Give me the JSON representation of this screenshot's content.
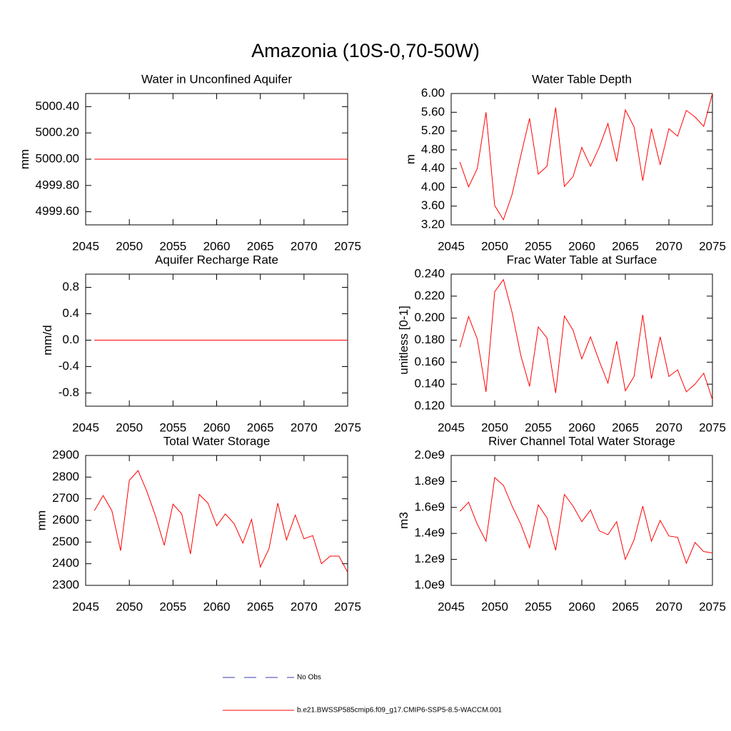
{
  "title": "Amazonia (10S-0,70-50W)",
  "chart_data": [
    {
      "type": "line",
      "title": "Water in Unconfined Aquifer",
      "ylabel": "mm",
      "x": [
        2046,
        2047,
        2048,
        2049,
        2050,
        2051,
        2052,
        2053,
        2054,
        2055,
        2056,
        2057,
        2058,
        2059,
        2060,
        2061,
        2062,
        2063,
        2064,
        2065,
        2066,
        2067,
        2068,
        2069,
        2070,
        2071,
        2072,
        2073,
        2074,
        2075
      ],
      "values": [
        5000,
        5000,
        5000,
        5000,
        5000,
        5000,
        5000,
        5000,
        5000,
        5000,
        5000,
        5000,
        5000,
        5000,
        5000,
        5000,
        5000,
        5000,
        5000,
        5000,
        5000,
        5000,
        5000,
        5000,
        5000,
        5000,
        5000,
        5000,
        5000,
        5000
      ],
      "color": "#ff0000",
      "xlim": [
        2045,
        2075
      ],
      "ylim": [
        4999.5,
        5000.5
      ],
      "xticks": [
        2045,
        2050,
        2055,
        2060,
        2065,
        2070,
        2075
      ],
      "yticks": [
        {
          "value": 4999.6,
          "label": "4999.60"
        },
        {
          "value": 4999.8,
          "label": "4999.80"
        },
        {
          "value": 5000,
          "label": "5000.00"
        },
        {
          "value": 5000.2,
          "label": "5000.20"
        },
        {
          "value": 5000.4,
          "label": "5000.40"
        }
      ]
    },
    {
      "type": "line",
      "title": "Water Table Depth",
      "ylabel": "m",
      "x": [
        2046,
        2047,
        2048,
        2049,
        2050,
        2051,
        2052,
        2053,
        2054,
        2055,
        2056,
        2057,
        2058,
        2059,
        2060,
        2061,
        2062,
        2063,
        2064,
        2065,
        2066,
        2067,
        2068,
        2069,
        2070,
        2071,
        2072,
        2073,
        2074,
        2075
      ],
      "values": [
        4.54,
        4.01,
        4.4,
        5.6,
        3.61,
        3.31,
        3.85,
        4.68,
        5.47,
        4.28,
        4.45,
        5.7,
        4.02,
        4.23,
        4.85,
        4.45,
        4.85,
        5.36,
        4.55,
        5.65,
        5.29,
        4.14,
        5.25,
        4.48,
        5.25,
        5.09,
        5.64,
        5.5,
        5.3,
        6.0
      ],
      "color": "#ff0000",
      "xlim": [
        2045,
        2075
      ],
      "ylim": [
        3.2,
        6.0
      ],
      "xticks": [
        2045,
        2050,
        2055,
        2060,
        2065,
        2070,
        2075
      ],
      "yticks": [
        {
          "value": 3.2,
          "label": "3.20"
        },
        {
          "value": 3.6,
          "label": "3.60"
        },
        {
          "value": 4.0,
          "label": "4.00"
        },
        {
          "value": 4.4,
          "label": "4.40"
        },
        {
          "value": 4.8,
          "label": "4.80"
        },
        {
          "value": 5.2,
          "label": "5.20"
        },
        {
          "value": 5.6,
          "label": "5.60"
        },
        {
          "value": 6.0,
          "label": "6.00"
        }
      ]
    },
    {
      "type": "line",
      "title": "Aquifer Recharge Rate",
      "ylabel": "mm/d",
      "x": [
        2046,
        2047,
        2048,
        2049,
        2050,
        2051,
        2052,
        2053,
        2054,
        2055,
        2056,
        2057,
        2058,
        2059,
        2060,
        2061,
        2062,
        2063,
        2064,
        2065,
        2066,
        2067,
        2068,
        2069,
        2070,
        2071,
        2072,
        2073,
        2074,
        2075
      ],
      "values": [
        0,
        0,
        0,
        0,
        0,
        0,
        0,
        0,
        0,
        0,
        0,
        0,
        0,
        0,
        0,
        0,
        0,
        0,
        0,
        0,
        0,
        0,
        0,
        0,
        0,
        0,
        0,
        0,
        0,
        0
      ],
      "color": "#ff0000",
      "xlim": [
        2045,
        2075
      ],
      "ylim": [
        -1,
        1
      ],
      "xticks": [
        2045,
        2050,
        2055,
        2060,
        2065,
        2070,
        2075
      ],
      "yticks": [
        -0.8,
        -0.4,
        {
          "value": 0,
          "label": "0.0"
        },
        0.4,
        0.8
      ]
    },
    {
      "type": "line",
      "title": "Frac Water Table at Surface",
      "ylabel": "unitless [0-1]",
      "x": [
        2046,
        2047,
        2048,
        2049,
        2050,
        2051,
        2052,
        2053,
        2054,
        2055,
        2056,
        2057,
        2058,
        2059,
        2060,
        2061,
        2062,
        2063,
        2064,
        2065,
        2066,
        2067,
        2068,
        2069,
        2070,
        2071,
        2072,
        2073,
        2074,
        2075
      ],
      "values": [
        0.1735,
        0.2015,
        0.181,
        0.133,
        0.224,
        0.235,
        0.205,
        0.166,
        0.138,
        0.192,
        0.182,
        0.132,
        0.202,
        0.189,
        0.163,
        0.183,
        0.161,
        0.141,
        0.179,
        0.134,
        0.147,
        0.203,
        0.145,
        0.183,
        0.147,
        0.153,
        0.133,
        0.14,
        0.15,
        0.126
      ],
      "color": "#ff0000",
      "xlim": [
        2045,
        2075
      ],
      "ylim": [
        0.12,
        0.24
      ],
      "xticks": [
        2045,
        2050,
        2055,
        2060,
        2065,
        2070,
        2075
      ],
      "yticks": [
        {
          "value": 0.12,
          "label": "0.120"
        },
        {
          "value": 0.14,
          "label": "0.140"
        },
        {
          "value": 0.16,
          "label": "0.160"
        },
        {
          "value": 0.18,
          "label": "0.180"
        },
        {
          "value": 0.2,
          "label": "0.200"
        },
        {
          "value": 0.22,
          "label": "0.220"
        },
        {
          "value": 0.24,
          "label": "0.240"
        }
      ]
    },
    {
      "type": "line",
      "title": "Total Water Storage",
      "ylabel": "mm",
      "x": [
        2046,
        2047,
        2048,
        2049,
        2050,
        2051,
        2052,
        2053,
        2054,
        2055,
        2056,
        2057,
        2058,
        2059,
        2060,
        2061,
        2062,
        2063,
        2064,
        2065,
        2066,
        2067,
        2068,
        2069,
        2070,
        2071,
        2072,
        2073,
        2074,
        2075
      ],
      "values": [
        2645,
        2715,
        2645,
        2460,
        2785,
        2830,
        2735,
        2620,
        2485,
        2675,
        2630,
        2445,
        2720,
        2680,
        2575,
        2630,
        2585,
        2495,
        2605,
        2385,
        2470,
        2680,
        2510,
        2625,
        2515,
        2530,
        2400,
        2435,
        2435,
        2360
      ],
      "color": "#ff0000",
      "xlim": [
        2045,
        2075
      ],
      "ylim": [
        2300,
        2900
      ],
      "xticks": [
        2045,
        2050,
        2055,
        2060,
        2065,
        2070,
        2075
      ],
      "yticks": [
        2300,
        2400,
        2500,
        2600,
        2700,
        2800,
        2900
      ]
    },
    {
      "type": "line",
      "title": "River Channel Total Water Storage",
      "ylabel": "m3",
      "x": [
        2046,
        2047,
        2048,
        2049,
        2050,
        2051,
        2052,
        2053,
        2054,
        2055,
        2056,
        2057,
        2058,
        2059,
        2060,
        2061,
        2062,
        2063,
        2064,
        2065,
        2066,
        2067,
        2068,
        2069,
        2070,
        2071,
        2072,
        2073,
        2074,
        2075
      ],
      "values": [
        1570000000,
        1640000000,
        1470000000,
        1340000000,
        1830000000,
        1770000000,
        1610000000,
        1470000000,
        1290000000,
        1620000000,
        1520000000,
        1270000000,
        1700000000,
        1610000000,
        1490000000,
        1580000000,
        1420000000,
        1390000000,
        1490000000,
        1200000000,
        1350000000,
        1610000000,
        1340000000,
        1500000000,
        1380000000,
        1370000000,
        1170000000,
        1330000000,
        1260000000,
        1250000000
      ],
      "color": "#ff0000",
      "xlim": [
        2045,
        2075
      ],
      "ylim": [
        1000000000,
        2000000000
      ],
      "xticks": [
        2045,
        2050,
        2055,
        2060,
        2065,
        2070,
        2075
      ],
      "yticks": [
        {
          "value": 1000000000,
          "label": "1.0e9"
        },
        {
          "value": 1200000000,
          "label": "1.2e9"
        },
        {
          "value": 1400000000,
          "label": "1.4e9"
        },
        {
          "value": 1600000000,
          "label": "1.6e9"
        },
        {
          "value": 1800000000,
          "label": "1.8e9"
        },
        {
          "value": 2000000000,
          "label": "2.0e9"
        }
      ]
    }
  ],
  "legend": [
    {
      "name": "No Obs",
      "color": "#3c3ca8",
      "dash": true
    },
    {
      "name": "b.e21.BWSSP585cmip6.f09_g17.CMIP6-SSP5-8.5-WACCM.001",
      "color": "#ff0000",
      "dash": false
    }
  ]
}
